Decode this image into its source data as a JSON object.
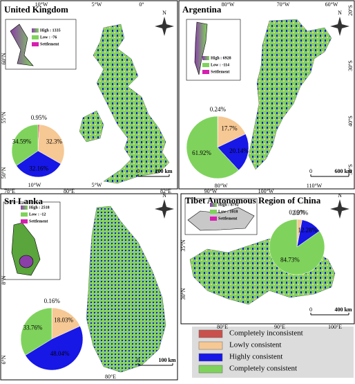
{
  "north": "N",
  "panels": [
    {
      "title": "United Kingdom",
      "coords": [
        "10°W",
        "5°W",
        "0°",
        "60°N",
        "55°N",
        "50°N",
        "10°W",
        "5°W"
      ],
      "inset": [
        "High : 1335",
        "Low : -76",
        "Settlement"
      ],
      "scale": [
        "0",
        "200 km"
      ],
      "pie": {
        "values": [
          0.95,
          32.3,
          32.16,
          34.59
        ],
        "value_labels": [
          "0.95%",
          "32.3%",
          "32.16%",
          "34.59%"
        ]
      }
    },
    {
      "title": "Argentina",
      "coords": [
        "80°W",
        "70°W",
        "60°W",
        "20°S",
        "30°S",
        "40°S",
        "50°S",
        "90°W",
        "80°W",
        "100°W",
        "110°W"
      ],
      "inset": [
        "High : 6928",
        "Low : -114",
        "Settlement"
      ],
      "scale": [
        "0",
        "600 km"
      ],
      "pie": {
        "values": [
          0.24,
          17.7,
          20.14,
          61.92
        ],
        "value_labels": [
          "0.24%",
          "17.7%",
          "20.14%",
          "61.92%"
        ]
      }
    },
    {
      "title": "Sri Lanka",
      "coords": [
        "78°E",
        "80°E",
        "82°E",
        "8°N",
        "6°N",
        "80°E"
      ],
      "inset": [
        "High : 2518",
        "Low : -12",
        "Settlement"
      ],
      "scale": [
        "0",
        "100 km"
      ],
      "pie": {
        "values": [
          0.16,
          18.03,
          48.04,
          33.76
        ],
        "value_labels": [
          "0.16%",
          "18.03%",
          "48.04%",
          "33.76%"
        ]
      }
    },
    {
      "title": "Tibet Autonomous Region of China",
      "coords": [
        "35°N",
        "30°N",
        "80°E",
        "90°E",
        "100°E"
      ],
      "inset": [
        "High : 8792",
        "Low : 1018",
        "Settlement"
      ],
      "scale": [
        "0",
        "400 km"
      ],
      "pie": {
        "values": [
          0.02,
          2.97,
          12.28,
          84.73
        ],
        "value_labels": [
          "0.02%",
          "2.97%",
          "12.28%",
          "84.73%"
        ]
      }
    }
  ],
  "legend": {
    "labels": [
      "Completely inconsistent",
      "Lowly consistent",
      "Highly consistent",
      "Completely consistent"
    ],
    "colors": [
      "#c9504c",
      "#f6c894",
      "#1717e6",
      "#7fd35c"
    ]
  }
}
